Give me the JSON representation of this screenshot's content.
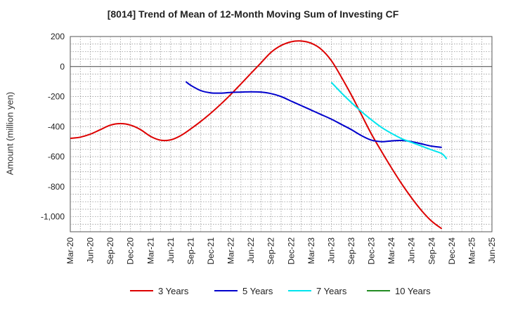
{
  "chart_data": {
    "type": "line",
    "title": "[8014]  Trend of Mean of 12-Month Moving Sum of Investing CF",
    "xlabel": "",
    "ylabel": "Amount (million yen)",
    "ylim": [
      -1100,
      200
    ],
    "yticks": [
      200,
      0,
      -200,
      -400,
      -600,
      -800,
      -1000
    ],
    "ytick_labels": [
      "200",
      "0",
      "-200",
      "-400",
      "-600",
      "-800",
      "-1,000"
    ],
    "x_labels": [
      "Mar-20",
      "Jun-20",
      "Sep-20",
      "Dec-20",
      "Mar-21",
      "Jun-21",
      "Sep-21",
      "Dec-21",
      "Mar-22",
      "Jun-22",
      "Sep-22",
      "Dec-22",
      "Mar-23",
      "Jun-23",
      "Sep-23",
      "Dec-23",
      "Mar-24",
      "Jun-24",
      "Sep-24",
      "Dec-24",
      "Mar-25",
      "Jun-25"
    ],
    "grid": true,
    "legend_position": "bottom",
    "series": [
      {
        "name": "3 Years",
        "color": "#dd0000",
        "points": [
          [
            0,
            -478
          ],
          [
            0.5,
            -470
          ],
          [
            1,
            -450
          ],
          [
            1.5,
            -420
          ],
          [
            2,
            -390
          ],
          [
            2.5,
            -380
          ],
          [
            3,
            -390
          ],
          [
            3.5,
            -420
          ],
          [
            4,
            -465
          ],
          [
            4.5,
            -490
          ],
          [
            5,
            -488
          ],
          [
            5.5,
            -460
          ],
          [
            6,
            -415
          ],
          [
            6.5,
            -365
          ],
          [
            7,
            -310
          ],
          [
            7.5,
            -250
          ],
          [
            8,
            -185
          ],
          [
            8.5,
            -115
          ],
          [
            9,
            -45
          ],
          [
            9.5,
            25
          ],
          [
            10,
            95
          ],
          [
            10.5,
            140
          ],
          [
            11,
            165
          ],
          [
            11.5,
            170
          ],
          [
            12,
            155
          ],
          [
            12.5,
            115
          ],
          [
            13,
            40
          ],
          [
            13.5,
            -70
          ],
          [
            14,
            -190
          ],
          [
            14.5,
            -320
          ],
          [
            15,
            -450
          ],
          [
            15.5,
            -565
          ],
          [
            16,
            -675
          ],
          [
            16.5,
            -780
          ],
          [
            17,
            -875
          ],
          [
            17.5,
            -960
          ],
          [
            18,
            -1030
          ],
          [
            18.5,
            -1080
          ]
        ]
      },
      {
        "name": "5 Years",
        "color": "#0000cc",
        "points": [
          [
            5.75,
            -100
          ],
          [
            6,
            -125
          ],
          [
            6.5,
            -160
          ],
          [
            7,
            -175
          ],
          [
            7.5,
            -177
          ],
          [
            8,
            -172
          ],
          [
            8.5,
            -170
          ],
          [
            9,
            -168
          ],
          [
            9.5,
            -170
          ],
          [
            10,
            -180
          ],
          [
            10.5,
            -200
          ],
          [
            11,
            -230
          ],
          [
            11.5,
            -260
          ],
          [
            12,
            -290
          ],
          [
            12.5,
            -320
          ],
          [
            13,
            -350
          ],
          [
            13.5,
            -385
          ],
          [
            14,
            -420
          ],
          [
            14.5,
            -460
          ],
          [
            15,
            -490
          ],
          [
            15.5,
            -500
          ],
          [
            16,
            -495
          ],
          [
            16.5,
            -492
          ],
          [
            17,
            -500
          ],
          [
            17.5,
            -515
          ],
          [
            18,
            -530
          ],
          [
            18.5,
            -538
          ]
        ]
      },
      {
        "name": "7 Years",
        "color": "#00e5ee",
        "points": [
          [
            13,
            -105
          ],
          [
            13.5,
            -175
          ],
          [
            14,
            -240
          ],
          [
            14.5,
            -300
          ],
          [
            15,
            -355
          ],
          [
            15.5,
            -405
          ],
          [
            16,
            -445
          ],
          [
            16.5,
            -480
          ],
          [
            17,
            -505
          ],
          [
            17.5,
            -530
          ],
          [
            18,
            -555
          ],
          [
            18.5,
            -580
          ],
          [
            18.75,
            -615
          ]
        ]
      },
      {
        "name": "10 Years",
        "color": "#228b22",
        "points": []
      }
    ]
  }
}
